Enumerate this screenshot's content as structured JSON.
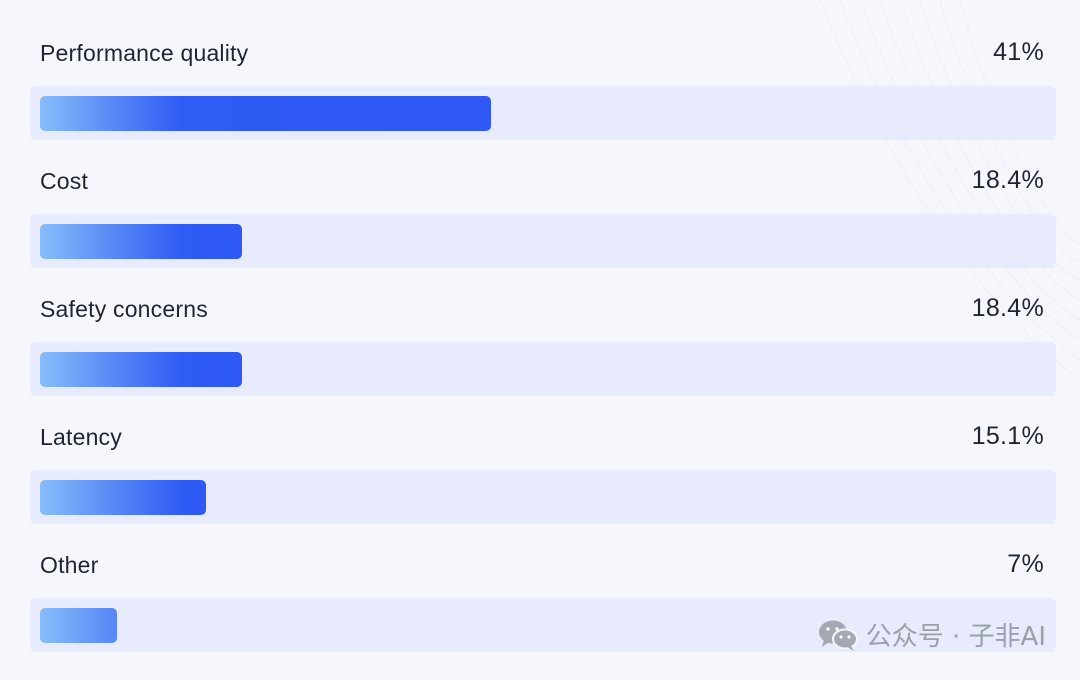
{
  "chart_data": {
    "type": "bar",
    "orientation": "horizontal",
    "categories": [
      "Performance quality",
      "Cost",
      "Safety concerns",
      "Latency",
      "Other"
    ],
    "values": [
      41,
      18.4,
      18.4,
      15.1,
      7
    ],
    "value_labels": [
      "41%",
      "18.4%",
      "18.4%",
      "15.1%",
      "7%"
    ],
    "xlim": [
      0,
      100
    ],
    "unit": "%",
    "grid": false,
    "legend": "none",
    "colors": {
      "bar_start": "#86bdfa",
      "bar_end": "#2f58f5",
      "track": "#e7ebfb",
      "background": "#f6f7fd",
      "text": "#1f2430"
    }
  },
  "watermark": {
    "text": "公众号 · 子非AI",
    "icon": "wechat-icon"
  }
}
